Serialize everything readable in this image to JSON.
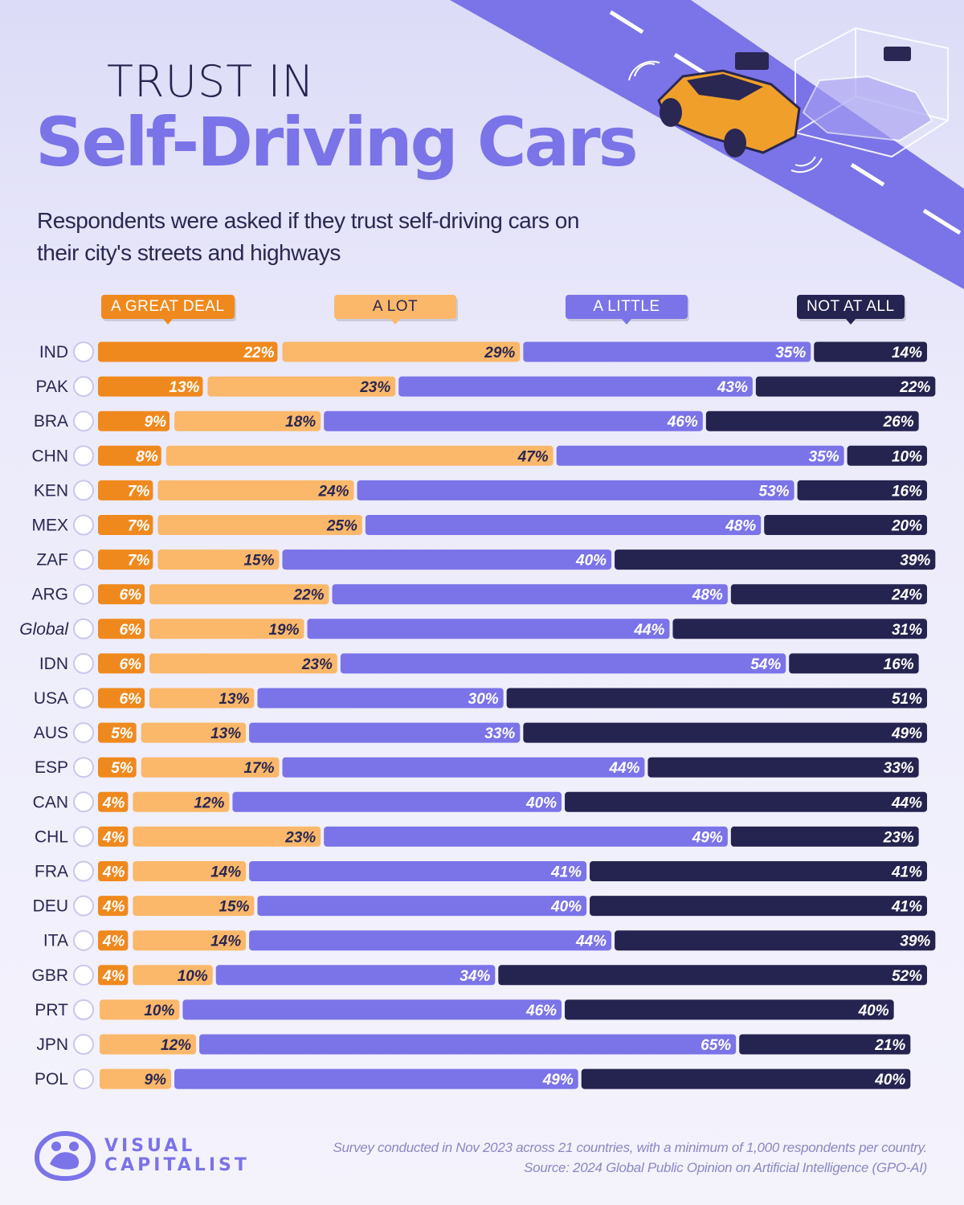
{
  "header": {
    "title_small": "TRUST IN",
    "title_large": "Self-Driving Cars",
    "subtitle": "Respondents were asked if they trust self-driving cars on their city's streets and highways"
  },
  "legend": [
    "A GREAT DEAL",
    "A LOT",
    "A LITTLE",
    "NOT AT ALL"
  ],
  "colors": {
    "great_deal": "#f0891d",
    "a_lot": "#fbb86a",
    "a_little": "#7b73e8",
    "not_at_all": "#252350",
    "title": "#7b73e8"
  },
  "chart_data": {
    "type": "bar",
    "orientation": "horizontal",
    "stacked": true,
    "title": "Trust in Self-Driving Cars",
    "unit": "%",
    "categories": [
      "IND",
      "PAK",
      "BRA",
      "CHN",
      "KEN",
      "MEX",
      "ZAF",
      "ARG",
      "Global",
      "IDN",
      "USA",
      "AUS",
      "ESP",
      "CAN",
      "CHL",
      "FRA",
      "DEU",
      "ITA",
      "GBR",
      "PRT",
      "JPN",
      "POL"
    ],
    "series": [
      {
        "name": "A GREAT DEAL",
        "values": [
          22,
          13,
          9,
          8,
          7,
          7,
          7,
          6,
          6,
          6,
          6,
          5,
          5,
          4,
          4,
          4,
          4,
          4,
          4,
          0,
          0,
          0
        ]
      },
      {
        "name": "A LOT",
        "values": [
          29,
          23,
          18,
          47,
          24,
          25,
          15,
          22,
          19,
          23,
          13,
          13,
          17,
          12,
          23,
          14,
          15,
          14,
          10,
          10,
          12,
          9
        ]
      },
      {
        "name": "A LITTLE",
        "values": [
          35,
          43,
          46,
          35,
          53,
          48,
          40,
          48,
          44,
          54,
          30,
          33,
          44,
          40,
          49,
          41,
          40,
          44,
          34,
          46,
          65,
          49
        ]
      },
      {
        "name": "NOT AT ALL",
        "values": [
          14,
          22,
          26,
          10,
          16,
          20,
          39,
          24,
          31,
          16,
          51,
          49,
          33,
          44,
          23,
          41,
          41,
          39,
          52,
          40,
          21,
          40
        ]
      }
    ],
    "xlim": [
      0,
      100
    ]
  },
  "footer": {
    "brand_line1": "VISUAL",
    "brand_line2": "CAPITALIST",
    "note": "Survey conducted in Nov 2023 across 21 countries, with a minimum of 1,000 respondents per country. Source: 2024 Global Public Opinion on Artificial Intelligence (GPO-AI)"
  }
}
